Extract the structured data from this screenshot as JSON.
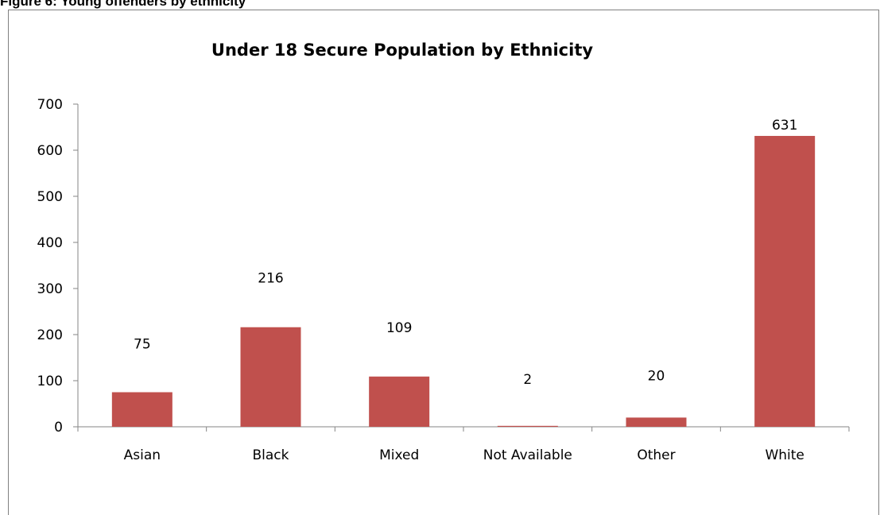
{
  "caption": "Figure 6: Young offenders by ethnicity",
  "chart_data": {
    "type": "bar",
    "title": "Under 18 Secure Population by Ethnicity",
    "categories": [
      "Asian",
      "Black",
      "Mixed",
      "Not Available",
      "Other",
      "White"
    ],
    "values": [
      75,
      216,
      109,
      2,
      20,
      631
    ],
    "data_labels": [
      "75",
      "216",
      "109",
      "2",
      "20",
      "631"
    ],
    "ylim": [
      0,
      700
    ],
    "yticks": [
      "0",
      "100",
      "200",
      "300",
      "400",
      "500",
      "600",
      "700"
    ],
    "bar_color": "#c0504d",
    "grid": false,
    "legend": "none"
  }
}
